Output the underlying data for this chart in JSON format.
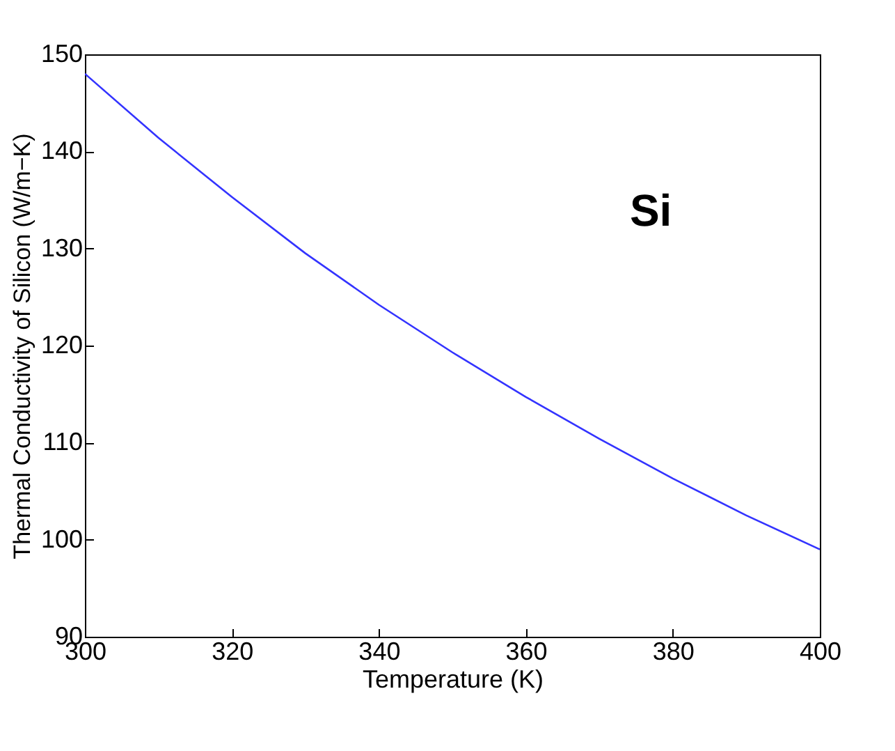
{
  "chart_data": {
    "type": "line",
    "xlabel": "Temperature (K)",
    "ylabel": "Thermal Conductivity of Silicon (W/m−K)",
    "x": [
      300,
      310,
      320,
      330,
      340,
      350,
      360,
      370,
      380,
      390,
      400
    ],
    "series": [
      {
        "name": "Si",
        "color": "#3333ff",
        "values": [
          148,
          141.4,
          135.3,
          129.5,
          124.2,
          119.3,
          114.7,
          110.4,
          106.3,
          102.5,
          99
        ]
      }
    ],
    "xlim": [
      300,
      400
    ],
    "xticks": [
      300,
      320,
      340,
      360,
      380,
      400
    ],
    "ylim": [
      90,
      150
    ],
    "yticks": [
      90,
      100,
      110,
      120,
      130,
      140,
      150
    ],
    "grid": false,
    "marker": "none",
    "line_style": "solid"
  }
}
